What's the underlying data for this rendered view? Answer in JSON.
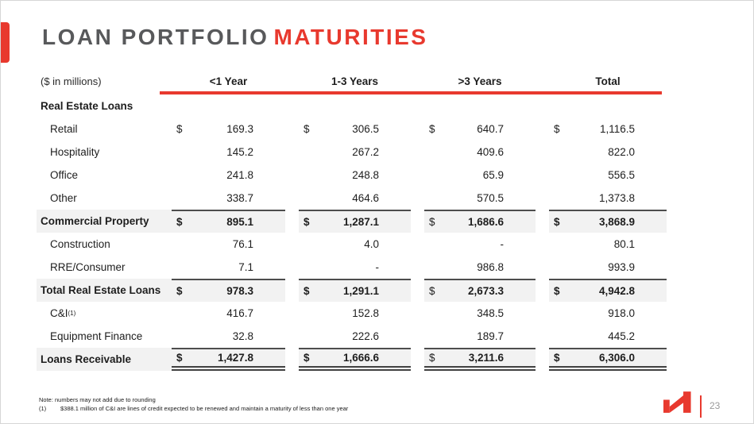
{
  "slide": {
    "title_primary": "LOAN PORTFOLIO",
    "title_accent": "MATURITIES",
    "page_number": "23"
  },
  "table": {
    "units_label": "($ in millions)",
    "currency_symbol": "$",
    "columns": [
      "<1 Year",
      "1-3 Years",
      ">3 Years",
      "Total"
    ],
    "rows": [
      {
        "label": "Real Estate Loans",
        "style": "section",
        "show_dollar": false,
        "values": []
      },
      {
        "label": "Retail",
        "style": "item",
        "show_dollar": true,
        "values": [
          "169.3",
          "306.5",
          "640.7",
          "1,116.5"
        ]
      },
      {
        "label": "Hospitality",
        "style": "item",
        "show_dollar": false,
        "values": [
          "145.2",
          "267.2",
          "409.6",
          "822.0"
        ]
      },
      {
        "label": "Office",
        "style": "item",
        "show_dollar": false,
        "values": [
          "241.8",
          "248.8",
          "65.9",
          "556.5"
        ]
      },
      {
        "label": "Other",
        "style": "item",
        "show_dollar": false,
        "values": [
          "338.7",
          "464.6",
          "570.5",
          "1,373.8"
        ]
      },
      {
        "label": "Commercial Property",
        "style": "total",
        "show_dollar": true,
        "values": [
          "895.1",
          "1,287.1",
          "1,686.6",
          "3,868.9"
        ]
      },
      {
        "label": "Construction",
        "style": "item",
        "show_dollar": false,
        "values": [
          "76.1",
          "4.0",
          "-",
          "80.1"
        ]
      },
      {
        "label": "RRE/Consumer",
        "style": "item",
        "show_dollar": false,
        "values": [
          "7.1",
          "-",
          "986.8",
          "993.9"
        ]
      },
      {
        "label": "Total Real Estate Loans",
        "style": "total",
        "show_dollar": true,
        "values": [
          "978.3",
          "1,291.1",
          "2,673.3",
          "4,942.8"
        ]
      },
      {
        "label": "C&I",
        "label_sup": "(1)",
        "style": "item",
        "show_dollar": false,
        "values": [
          "416.7",
          "152.8",
          "348.5",
          "918.0"
        ]
      },
      {
        "label": "Equipment Finance",
        "style": "item",
        "show_dollar": false,
        "values": [
          "32.8",
          "222.6",
          "189.7",
          "445.2"
        ]
      },
      {
        "label": "Loans Receivable",
        "style": "grand",
        "show_dollar": true,
        "values": [
          "1,427.8",
          "1,666.6",
          "3,211.6",
          "6,306.0"
        ]
      }
    ]
  },
  "footnotes": {
    "note": "Note: numbers may not add due to rounding",
    "items": [
      {
        "marker": "(1)",
        "text": "$388.1 million of C&I are lines of credit expected to be renewed and maintain a maturity of less than one year"
      }
    ]
  },
  "colors": {
    "accent_red": "#E8392E",
    "title_gray": "#58595B",
    "row_shade": "#F2F2F2",
    "rule_dark": "#4D4D4D"
  }
}
